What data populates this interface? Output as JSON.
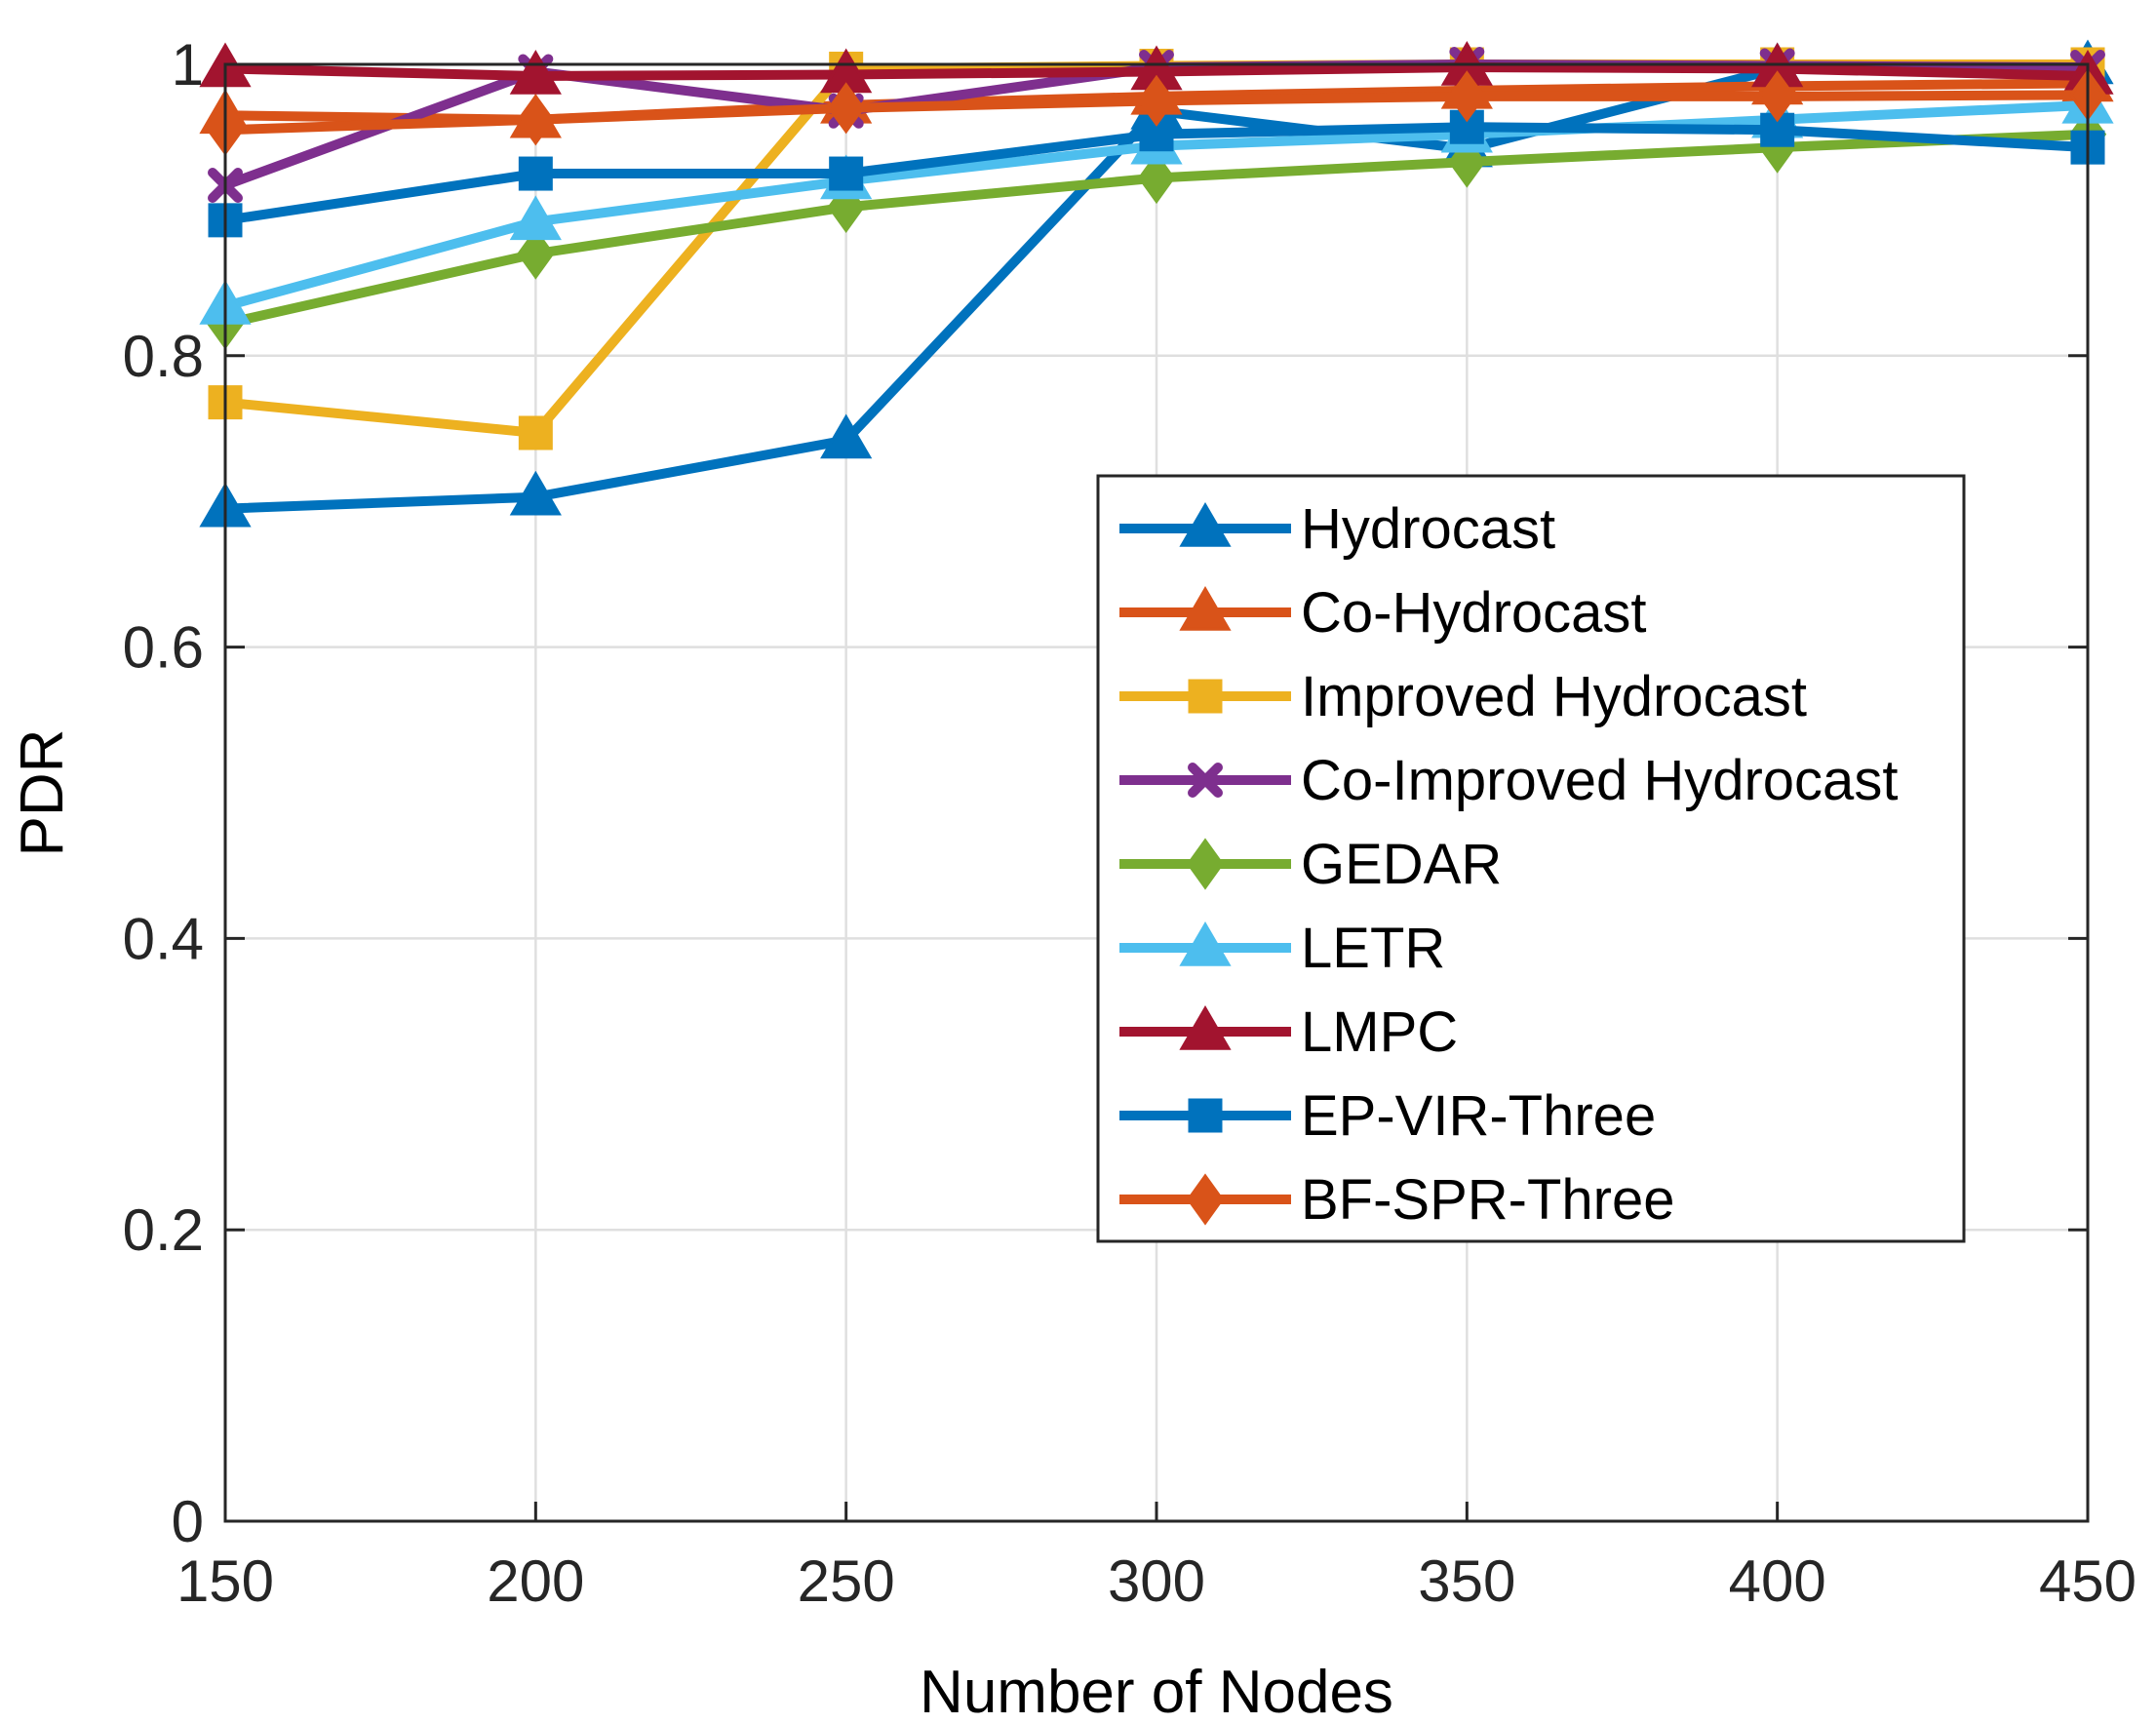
{
  "chart_data": {
    "type": "line",
    "title": "",
    "xlabel": "Number of Nodes",
    "ylabel": "PDR",
    "x": [
      150,
      200,
      250,
      300,
      350,
      400,
      450
    ],
    "xlim": [
      150,
      450
    ],
    "ylim": [
      0,
      1.0
    ],
    "xticks": [
      150,
      200,
      250,
      300,
      350,
      400,
      450
    ],
    "yticks": [
      0,
      0.2,
      0.4,
      0.6,
      0.8,
      1
    ],
    "ytick_labels": [
      "0",
      "0.2",
      "0.4",
      "0.6",
      "0.8",
      "1"
    ],
    "grid": true,
    "legend_location": "center-right",
    "series": [
      {
        "name": "Hydrocast",
        "color": "#0072BD",
        "marker": "triangle",
        "values": [
          0.695,
          0.703,
          0.742,
          0.968,
          0.942,
          0.997,
          0.999
        ]
      },
      {
        "name": "Co-Hydrocast",
        "color": "#D95319",
        "marker": "triangle",
        "values": [
          0.965,
          0.962,
          0.972,
          0.978,
          0.982,
          0.985,
          0.987
        ]
      },
      {
        "name": "Improved Hydrocast",
        "color": "#EDB120",
        "marker": "square",
        "values": [
          0.768,
          0.747,
          0.997,
          0.999,
          1.0,
          1.0,
          1.0
        ]
      },
      {
        "name": "Co-Improved Hydrocast",
        "color": "#7E2F8E",
        "marker": "x",
        "values": [
          0.917,
          0.995,
          0.968,
          0.998,
          1.0,
          0.999,
          0.998
        ]
      },
      {
        "name": "GEDAR",
        "color": "#77AC30",
        "marker": "diamond",
        "values": [
          0.822,
          0.87,
          0.902,
          0.922,
          0.933,
          0.943,
          0.952
        ]
      },
      {
        "name": "LETR",
        "color": "#4DBEEE",
        "marker": "triangle",
        "values": [
          0.834,
          0.892,
          0.92,
          0.944,
          0.952,
          0.962,
          0.972
        ]
      },
      {
        "name": "LMPC",
        "color": "#A2142F",
        "marker": "triangle",
        "values": [
          0.997,
          0.992,
          0.993,
          0.995,
          0.998,
          0.997,
          0.992
        ]
      },
      {
        "name": "EP-VIR-Three",
        "color": "#0072BD",
        "marker": "square",
        "values": [
          0.893,
          0.925,
          0.925,
          0.952,
          0.957,
          0.955,
          0.943
        ]
      },
      {
        "name": "BF-SPR-Three",
        "color": "#D95319",
        "marker": "diamond",
        "values": [
          0.955,
          0.962,
          0.97,
          0.975,
          0.978,
          0.978,
          0.979
        ]
      }
    ]
  }
}
